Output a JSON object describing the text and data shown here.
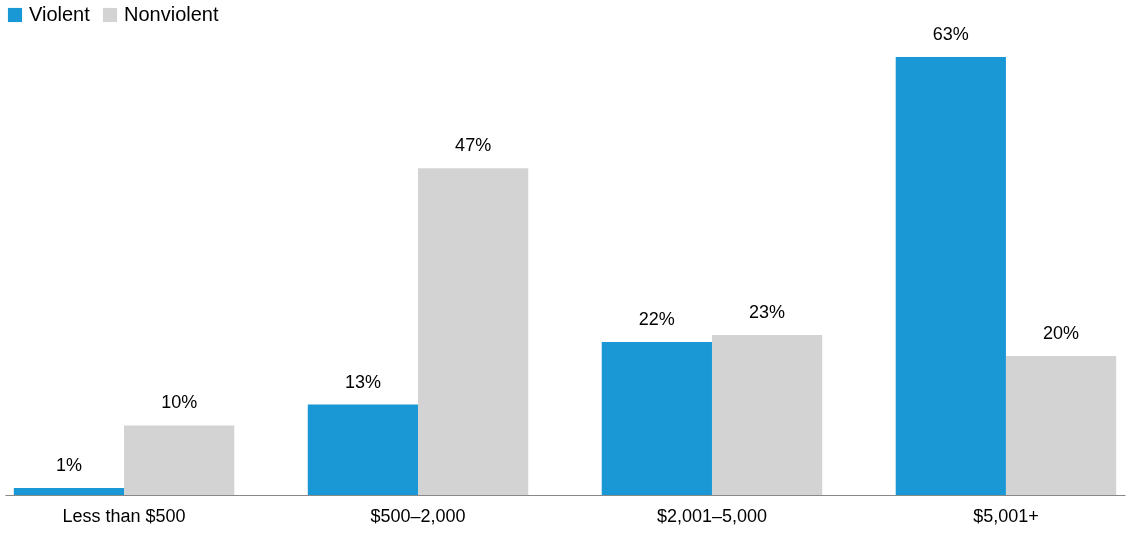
{
  "chart_data": {
    "type": "bar",
    "categories": [
      "Less than $500",
      "$500–2,000",
      "$2,001–5,000",
      "$5,001+"
    ],
    "series": [
      {
        "name": "Violent",
        "color": "#1998d5",
        "values": [
          1,
          13,
          22,
          63
        ],
        "value_labels": [
          "1%",
          "13%",
          "22%",
          "63%"
        ]
      },
      {
        "name": "Nonviolent",
        "color": "#d3d3d3",
        "values": [
          10,
          47,
          23,
          20
        ],
        "value_labels": [
          "10%",
          "47%",
          "23%",
          "20%"
        ]
      }
    ],
    "legend": "top",
    "grid": false,
    "tick_labels": "x"
  }
}
